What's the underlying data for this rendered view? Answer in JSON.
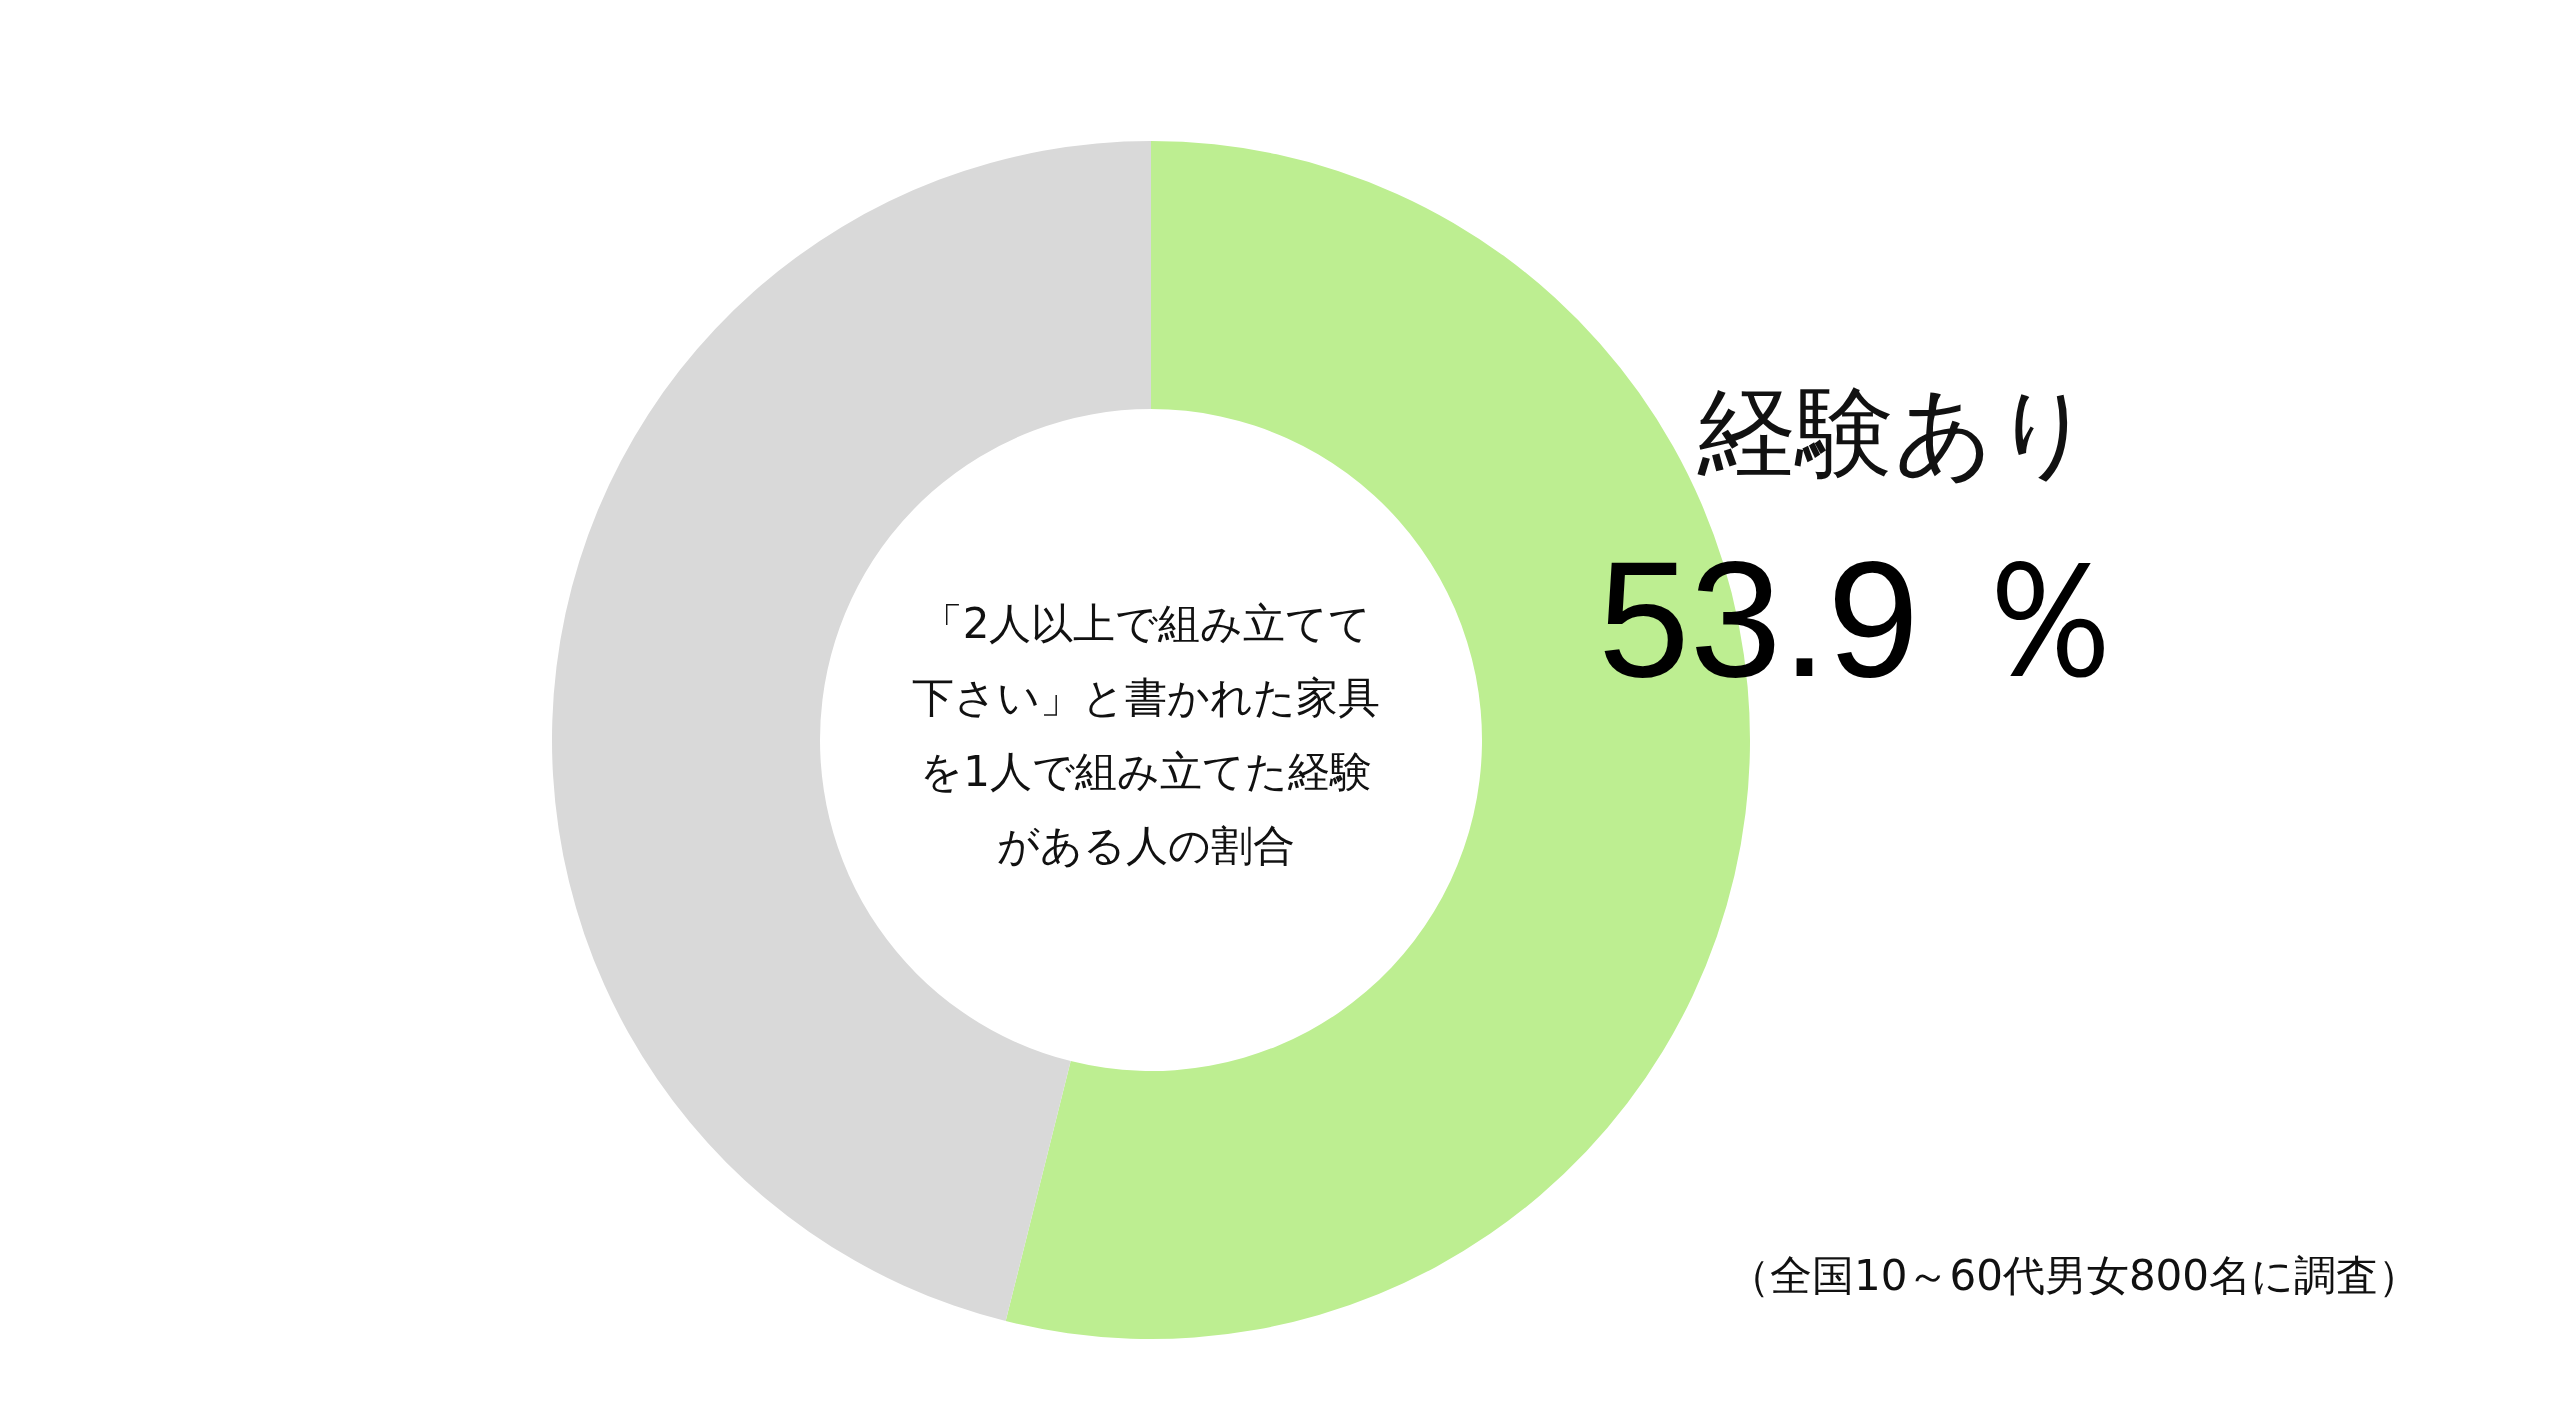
{
  "chart_data": {
    "type": "donut",
    "title": "「2人以上で組み立てて下さい」と書かれた家具を1人で組み立てた経験がある人の割合",
    "categories": [
      "経験あり",
      null
    ],
    "values": [
      53.9,
      46.1
    ],
    "colors": [
      "#bdee91",
      "#d9d9d9"
    ],
    "value_labels": [
      "53.9 ％",
      null
    ],
    "annotations": [
      "（全国10～60代男女800名に調査）"
    ]
  }
}
